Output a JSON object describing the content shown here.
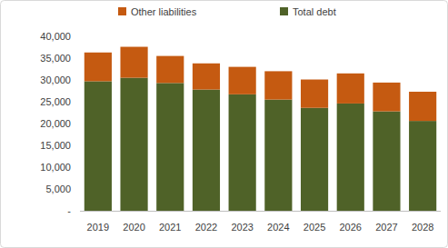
{
  "chart_data": {
    "type": "bar",
    "stacked": true,
    "grid": false,
    "legend": "top",
    "categories": [
      "2019",
      "2020",
      "2021",
      "2022",
      "2023",
      "2024",
      "2025",
      "2026",
      "2027",
      "2028"
    ],
    "series": [
      {
        "name": "Total debt",
        "color": "#4f6228",
        "values": [
          29700,
          30500,
          29300,
          27800,
          26700,
          25500,
          23600,
          24600,
          22800,
          20600
        ]
      },
      {
        "name": "Other liabilities",
        "color": "#c55a11",
        "values": [
          6600,
          7100,
          6200,
          6000,
          6300,
          6500,
          6500,
          6900,
          6600,
          6700
        ]
      }
    ],
    "ylim": [
      0,
      40000
    ],
    "yticks": [
      {
        "value": 0,
        "label": "-"
      },
      {
        "value": 5000,
        "label": "5,000"
      },
      {
        "value": 10000,
        "label": "10,000"
      },
      {
        "value": 15000,
        "label": "15,000"
      },
      {
        "value": 20000,
        "label": "20,000"
      },
      {
        "value": 25000,
        "label": "25,000"
      },
      {
        "value": 30000,
        "label": "30,000"
      },
      {
        "value": 35000,
        "label": "35,000"
      },
      {
        "value": 40000,
        "label": "40,000"
      }
    ]
  }
}
